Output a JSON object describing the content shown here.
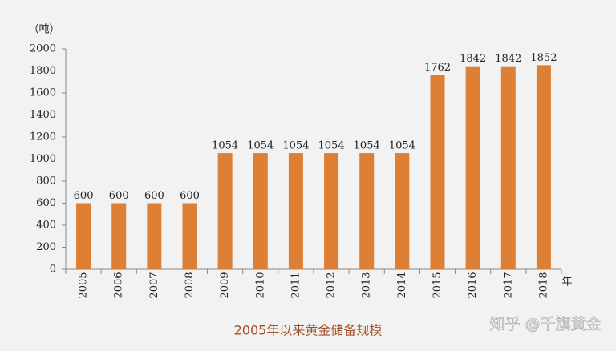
{
  "chart_data": {
    "type": "bar",
    "title": "2005年以来黄金储备规模",
    "y_axis_label": "（吨）",
    "x_axis_label": "年",
    "watermark": "知乎 @千旗黄金",
    "categories": [
      "2005",
      "2006",
      "2007",
      "2008",
      "2009",
      "2010",
      "2011",
      "2012",
      "2013",
      "2014",
      "2015",
      "2016",
      "2017",
      "2018"
    ],
    "values": [
      600,
      600,
      600,
      600,
      1054,
      1054,
      1054,
      1054,
      1054,
      1054,
      1762,
      1842,
      1842,
      1852
    ],
    "color": "#de7f36",
    "ylim": [
      0,
      2000
    ],
    "yticks": [
      0,
      200,
      400,
      600,
      800,
      1000,
      1200,
      1400,
      1600,
      1800,
      2000
    ],
    "grid": false
  }
}
